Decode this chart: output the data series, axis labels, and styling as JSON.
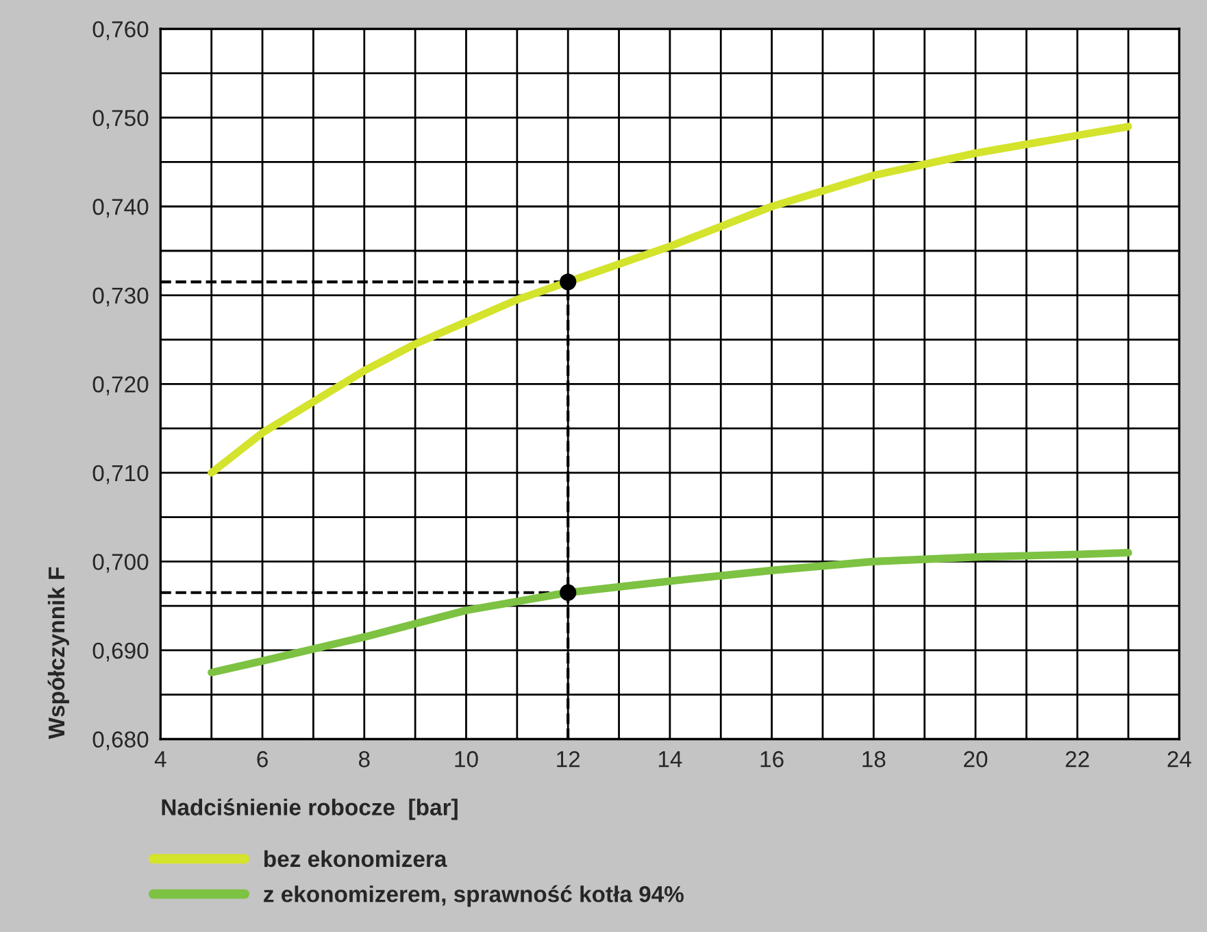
{
  "chart_data": {
    "type": "line",
    "xlabel": "Nadciśnienie robocze  [bar]",
    "ylabel": "Współczynnik F",
    "xlim": [
      4,
      24
    ],
    "ylim": [
      0.68,
      0.76
    ],
    "xticks": [
      4,
      {
        "value": 5,
        "label": null
      },
      6,
      {
        "value": 7,
        "label": null
      },
      8,
      {
        "value": 9,
        "label": null
      },
      10,
      {
        "value": 11,
        "label": null
      },
      12,
      {
        "value": 13,
        "label": null
      },
      14,
      {
        "value": 15,
        "label": null
      },
      16,
      {
        "value": 17,
        "label": null
      },
      18,
      {
        "value": 19,
        "label": null
      },
      20,
      {
        "value": 21,
        "label": null
      },
      22,
      {
        "value": 23,
        "label": null
      },
      24
    ],
    "yticks": [
      {
        "value": 0.68,
        "label": "0,680"
      },
      {
        "value": 0.685,
        "label": null
      },
      {
        "value": 0.69,
        "label": "0,690"
      },
      {
        "value": 0.695,
        "label": null
      },
      {
        "value": 0.7,
        "label": "0,700"
      },
      {
        "value": 0.705,
        "label": null
      },
      {
        "value": 0.71,
        "label": "0,710"
      },
      {
        "value": 0.715,
        "label": null
      },
      {
        "value": 0.72,
        "label": "0,720"
      },
      {
        "value": 0.725,
        "label": null
      },
      {
        "value": 0.73,
        "label": "0,730"
      },
      {
        "value": 0.735,
        "label": null
      },
      {
        "value": 0.74,
        "label": "0,740"
      },
      {
        "value": 0.745,
        "label": null
      },
      {
        "value": 0.75,
        "label": "0,750"
      },
      {
        "value": 0.755,
        "label": null
      },
      {
        "value": 0.76,
        "label": "0,760"
      }
    ],
    "grid": true,
    "legend": "bottom left",
    "marker": "none",
    "series": [
      {
        "name": "bez ekonomizera",
        "color": "#d4e32c",
        "x": [
          5,
          6,
          7,
          8,
          9,
          10,
          11,
          12,
          14,
          16,
          18,
          20,
          22,
          23
        ],
        "values": [
          0.71,
          0.7145,
          0.718,
          0.7215,
          0.7245,
          0.727,
          0.7295,
          0.7315,
          0.7355,
          0.74,
          0.7435,
          0.746,
          0.748,
          0.749
        ]
      },
      {
        "name": "z ekonomizerem, sprawność kotła 94%",
        "color": "#7dc242",
        "x": [
          5,
          6,
          8,
          10,
          12,
          14,
          16,
          18,
          20,
          22,
          23
        ],
        "values": [
          0.6875,
          0.6888,
          0.6915,
          0.6945,
          0.6965,
          0.6978,
          0.699,
          0.7,
          0.7005,
          0.7008,
          0.701
        ]
      },
      {
        "type": "line",
        "line_style": "dashed",
        "color": "#000000",
        "x": [
          4,
          12
        ],
        "values": [
          0.7315,
          0.7315
        ]
      },
      {
        "type": "line",
        "line_style": "dashed",
        "color": "#000000",
        "x": [
          4,
          12
        ],
        "values": [
          0.6965,
          0.6965
        ]
      },
      {
        "type": "line",
        "line_style": "dashed",
        "color": "#000000",
        "x": [
          12,
          12
        ],
        "values": [
          0.68,
          0.7315
        ]
      },
      {
        "type": "scatter",
        "marker": "circle",
        "color": "#000000",
        "x": [
          12,
          12
        ],
        "values": [
          0.7315,
          0.6965
        ]
      }
    ]
  }
}
